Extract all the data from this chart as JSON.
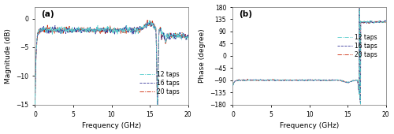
{
  "figsize": [
    5.0,
    1.7
  ],
  "dpi": 100,
  "bg_color": "#ffffff",
  "panel_a": {
    "label": "(a)",
    "ylabel": "Magnitude (dB)",
    "xlabel": "Frequency (GHz)",
    "ylim": [
      -15,
      2
    ],
    "yticks": [
      -15,
      -10,
      -5,
      0
    ],
    "xlim": [
      0,
      20
    ],
    "xticks": [
      0,
      5,
      10,
      15,
      20
    ]
  },
  "panel_b": {
    "label": "(b)",
    "ylabel": "Phase (degree)",
    "xlabel": "Frequency (GHz)",
    "ylim": [
      -180,
      180
    ],
    "yticks": [
      -180,
      -135,
      -90,
      -45,
      0,
      45,
      90,
      135,
      180
    ],
    "xlim": [
      0,
      20
    ],
    "xticks": [
      0,
      5,
      10,
      15,
      20
    ]
  },
  "colors": {
    "12taps": "#55cccc",
    "16taps": "#333399",
    "20taps": "#cc2200"
  },
  "legend_labels": [
    "12 taps",
    "16 taps",
    "20 taps"
  ]
}
